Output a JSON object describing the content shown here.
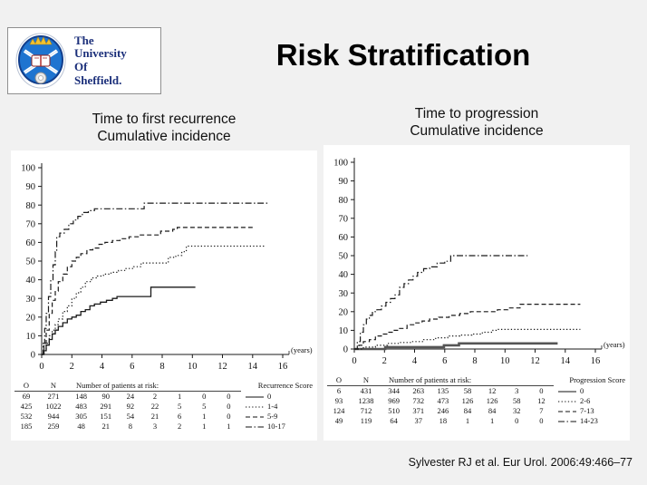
{
  "slide": {
    "title": "Risk Stratification",
    "citation": "Sylvester RJ et al. Eur Urol. 2006:49:466–77"
  },
  "logo": {
    "line1": "The",
    "line2": "University",
    "line3": "Of",
    "line4": "Sheffield."
  },
  "chart_data": [
    {
      "type": "line",
      "title_line1": "Time to first recurrence",
      "title_line2": "Cumulative incidence",
      "xlabel": "(years)",
      "ylabel": "",
      "xlim": [
        0,
        16
      ],
      "ylim": [
        0,
        100
      ],
      "xticks": [
        0,
        2,
        4,
        6,
        8,
        10,
        12,
        14,
        16
      ],
      "yticks": [
        0,
        10,
        20,
        30,
        40,
        50,
        60,
        70,
        80,
        90,
        100
      ],
      "legend_title": "Recurrence Score",
      "risk_header": "Number of patients at risk:",
      "col_o": "O",
      "col_n": "N",
      "series": [
        {
          "name": "0",
          "style": "solid",
          "points": [
            [
              0,
              0
            ],
            [
              0.15,
              2
            ],
            [
              0.3,
              5
            ],
            [
              0.5,
              8
            ],
            [
              0.7,
              11
            ],
            [
              0.9,
              13
            ],
            [
              1.1,
              15
            ],
            [
              1.4,
              17
            ],
            [
              1.7,
              19
            ],
            [
              2.0,
              20
            ],
            [
              2.3,
              21
            ],
            [
              2.6,
              23
            ],
            [
              2.9,
              24
            ],
            [
              3.2,
              26
            ],
            [
              3.5,
              27
            ],
            [
              3.9,
              28
            ],
            [
              4.3,
              29
            ],
            [
              4.7,
              30
            ],
            [
              5.0,
              31
            ],
            [
              7.2,
              31
            ],
            [
              7.25,
              36
            ],
            [
              10.2,
              36
            ]
          ]
        },
        {
          "name": "1-4",
          "style": "dotted",
          "points": [
            [
              0,
              0
            ],
            [
              0.15,
              3
            ],
            [
              0.3,
              6
            ],
            [
              0.5,
              10
            ],
            [
              0.7,
              13
            ],
            [
              0.9,
              16
            ],
            [
              1.1,
              19
            ],
            [
              1.4,
              23
            ],
            [
              1.7,
              26
            ],
            [
              2.0,
              30
            ],
            [
              2.3,
              33
            ],
            [
              2.6,
              36
            ],
            [
              2.9,
              39
            ],
            [
              3.3,
              41
            ],
            [
              3.7,
              42
            ],
            [
              4.1,
              43
            ],
            [
              4.6,
              44
            ],
            [
              5.1,
              45
            ],
            [
              5.6,
              46
            ],
            [
              6.1,
              47
            ],
            [
              6.6,
              49
            ],
            [
              8.1,
              49
            ],
            [
              8.4,
              52
            ],
            [
              8.9,
              53
            ],
            [
              9.3,
              55
            ],
            [
              9.6,
              58
            ],
            [
              14.8,
              58
            ]
          ]
        },
        {
          "name": "5-9",
          "style": "dashed",
          "points": [
            [
              0,
              0
            ],
            [
              0.15,
              6
            ],
            [
              0.3,
              13
            ],
            [
              0.5,
              22
            ],
            [
              0.7,
              29
            ],
            [
              0.9,
              34
            ],
            [
              1.1,
              39
            ],
            [
              1.4,
              43
            ],
            [
              1.7,
              47
            ],
            [
              2.0,
              50
            ],
            [
              2.3,
              52
            ],
            [
              2.6,
              54
            ],
            [
              3.0,
              56
            ],
            [
              3.4,
              57
            ],
            [
              3.8,
              59
            ],
            [
              4.2,
              60
            ],
            [
              4.7,
              61
            ],
            [
              5.2,
              62
            ],
            [
              5.8,
              63
            ],
            [
              6.5,
              64
            ],
            [
              7.6,
              64
            ],
            [
              7.9,
              66
            ],
            [
              8.7,
              67
            ],
            [
              9.0,
              68
            ],
            [
              14.0,
              68
            ]
          ]
        },
        {
          "name": "10-17",
          "style": "dashdot",
          "points": [
            [
              0,
              0
            ],
            [
              0.1,
              6
            ],
            [
              0.2,
              14
            ],
            [
              0.3,
              22
            ],
            [
              0.45,
              31
            ],
            [
              0.6,
              40
            ],
            [
              0.75,
              48
            ],
            [
              0.9,
              55
            ],
            [
              1.0,
              63
            ],
            [
              1.2,
              65
            ],
            [
              1.5,
              67
            ],
            [
              1.8,
              70
            ],
            [
              2.1,
              72
            ],
            [
              2.4,
              74
            ],
            [
              2.7,
              76
            ],
            [
              3.1,
              77
            ],
            [
              3.5,
              78
            ],
            [
              6.5,
              78
            ],
            [
              6.8,
              81
            ],
            [
              15.0,
              81
            ]
          ]
        }
      ],
      "risk_table": [
        {
          "o": "69",
          "n": "271",
          "counts": [
            "148",
            "90",
            "24",
            "2",
            "1",
            "0",
            "0"
          ],
          "score": "0",
          "style": "solid"
        },
        {
          "o": "425",
          "n": "1022",
          "counts": [
            "483",
            "291",
            "92",
            "22",
            "5",
            "5",
            "0"
          ],
          "score": "1-4",
          "style": "dotted"
        },
        {
          "o": "532",
          "n": "944",
          "counts": [
            "305",
            "151",
            "54",
            "21",
            "6",
            "1",
            "0"
          ],
          "score": "5-9",
          "style": "dashed"
        },
        {
          "o": "185",
          "n": "259",
          "counts": [
            "48",
            "21",
            "8",
            "3",
            "2",
            "1",
            "1"
          ],
          "score": "10-17",
          "style": "dashdot"
        }
      ]
    },
    {
      "type": "line",
      "title_line1": "Time to progression",
      "title_line2": "Cumulative incidence",
      "xlabel": "(years)",
      "ylabel": "",
      "xlim": [
        0,
        16
      ],
      "ylim": [
        0,
        100
      ],
      "xticks": [
        0,
        2,
        4,
        6,
        8,
        10,
        12,
        14,
        16
      ],
      "yticks": [
        0,
        10,
        20,
        30,
        40,
        50,
        60,
        70,
        80,
        90,
        100
      ],
      "legend_title": "Progression Score",
      "risk_header": "Number of patients at risk:",
      "col_o": "O",
      "col_n": "N",
      "series": [
        {
          "name": "0",
          "style": "solid",
          "stroke_width": 2.6,
          "color": "#555555",
          "points": [
            [
              0,
              0
            ],
            [
              2.0,
              0
            ],
            [
              2.05,
              1
            ],
            [
              5.9,
              1
            ],
            [
              5.95,
              2
            ],
            [
              6.9,
              2
            ],
            [
              6.95,
              3
            ],
            [
              13.5,
              3
            ]
          ]
        },
        {
          "name": "2-6",
          "style": "dotted",
          "points": [
            [
              0,
              0
            ],
            [
              0.6,
              1
            ],
            [
              1.4,
              2
            ],
            [
              2.2,
              3
            ],
            [
              3.0,
              3.5
            ],
            [
              3.8,
              4
            ],
            [
              4.6,
              5
            ],
            [
              5.4,
              6
            ],
            [
              6.2,
              7
            ],
            [
              7.0,
              7.5
            ],
            [
              7.8,
              8
            ],
            [
              8.5,
              9
            ],
            [
              9.2,
              10
            ],
            [
              9.5,
              10.5
            ],
            [
              15.0,
              10.5
            ]
          ]
        },
        {
          "name": "7-13",
          "style": "dashed",
          "points": [
            [
              0,
              0
            ],
            [
              0.3,
              2
            ],
            [
              0.6,
              4
            ],
            [
              1.0,
              5
            ],
            [
              1.4,
              7
            ],
            [
              1.8,
              8
            ],
            [
              2.2,
              9
            ],
            [
              2.6,
              10
            ],
            [
              3.0,
              11
            ],
            [
              3.5,
              13
            ],
            [
              4.0,
              14
            ],
            [
              4.5,
              15
            ],
            [
              5.0,
              16
            ],
            [
              5.6,
              17
            ],
            [
              6.3,
              18
            ],
            [
              7.0,
              19
            ],
            [
              7.7,
              20
            ],
            [
              9.0,
              20
            ],
            [
              9.5,
              21
            ],
            [
              10.2,
              22
            ],
            [
              11.0,
              24
            ],
            [
              15.0,
              24
            ]
          ]
        },
        {
          "name": "14-23",
          "style": "dashdot",
          "points": [
            [
              0,
              0
            ],
            [
              0.2,
              4
            ],
            [
              0.4,
              9
            ],
            [
              0.6,
              13
            ],
            [
              0.8,
              16
            ],
            [
              1.0,
              18
            ],
            [
              1.2,
              20
            ],
            [
              1.5,
              21
            ],
            [
              1.8,
              23
            ],
            [
              2.1,
              25
            ],
            [
              2.4,
              27
            ],
            [
              2.7,
              29
            ],
            [
              3.0,
              33
            ],
            [
              3.3,
              35
            ],
            [
              3.6,
              37
            ],
            [
              3.9,
              39
            ],
            [
              4.2,
              41
            ],
            [
              4.6,
              43
            ],
            [
              5.0,
              44
            ],
            [
              5.5,
              46
            ],
            [
              6.0,
              47
            ],
            [
              6.4,
              50
            ],
            [
              11.5,
              50
            ]
          ]
        }
      ],
      "risk_table": [
        {
          "o": "6",
          "n": "431",
          "counts": [
            "344",
            "263",
            "135",
            "58",
            "12",
            "3",
            "0"
          ],
          "score": "0",
          "style": "solid"
        },
        {
          "o": "93",
          "n": "1238",
          "counts": [
            "969",
            "732",
            "473",
            "126",
            "126",
            "58",
            "12"
          ],
          "score": "2-6",
          "style": "dotted"
        },
        {
          "o": "124",
          "n": "712",
          "counts": [
            "510",
            "371",
            "246",
            "84",
            "84",
            "32",
            "7"
          ],
          "score": "7-13",
          "style": "dashed"
        },
        {
          "o": "49",
          "n": "119",
          "counts": [
            "64",
            "37",
            "18",
            "1",
            "1",
            "0",
            "0"
          ],
          "score": "14-23",
          "style": "dashdot"
        }
      ]
    }
  ]
}
